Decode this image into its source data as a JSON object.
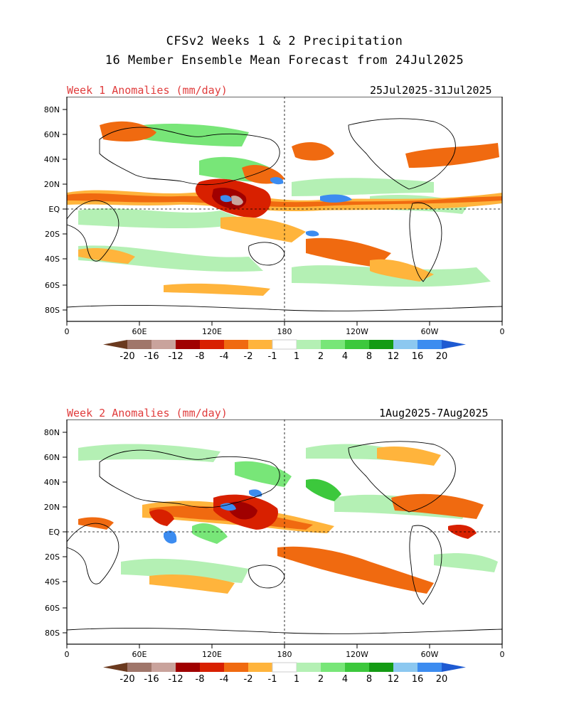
{
  "header": {
    "title_line1": "CFSv2 Weeks 1 & 2 Precipitation",
    "title_line2": "16 Member Ensemble Mean Forecast from 24Jul2025"
  },
  "panels": [
    {
      "label": "Week 1 Anomalies (mm/day)",
      "date_range": "25Jul2025-31Jul2025"
    },
    {
      "label": "Week 2 Anomalies (mm/day)",
      "date_range": "1Aug2025-7Aug2025"
    }
  ],
  "axes": {
    "lat_labels": [
      "80N",
      "60N",
      "40N",
      "20N",
      "EQ",
      "20S",
      "40S",
      "60S",
      "80S"
    ],
    "lon_labels": [
      "0",
      "60E",
      "120E",
      "180",
      "120W",
      "60W",
      "0"
    ]
  },
  "legend": {
    "labels": [
      "-20",
      "-16",
      "-12",
      "-8",
      "-4",
      "-2",
      "-1",
      "1",
      "2",
      "4",
      "8",
      "12",
      "16",
      "20"
    ],
    "colors": [
      "#6b3a1f",
      "#a0766a",
      "#c9a39c",
      "#a00000",
      "#d82000",
      "#f06a10",
      "#ffb43c",
      "#ffffff",
      "#b4f0b4",
      "#78e678",
      "#3cc83c",
      "#149b14",
      "#8cc8f0",
      "#3c8cf0",
      "#1e5ad2"
    ]
  },
  "colors": {
    "label_red": "#e03c3c",
    "land_outline": "#000000"
  }
}
